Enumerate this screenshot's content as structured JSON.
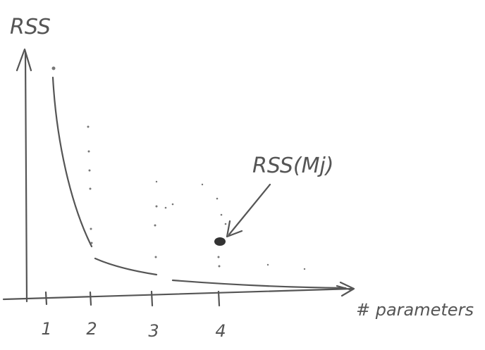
{
  "y_axis_label": "RSS",
  "x_axis_label": "# parameters",
  "x_tick_labels": [
    "1",
    "2",
    "3",
    "4"
  ],
  "annotation": "RSS(Mj)"
}
